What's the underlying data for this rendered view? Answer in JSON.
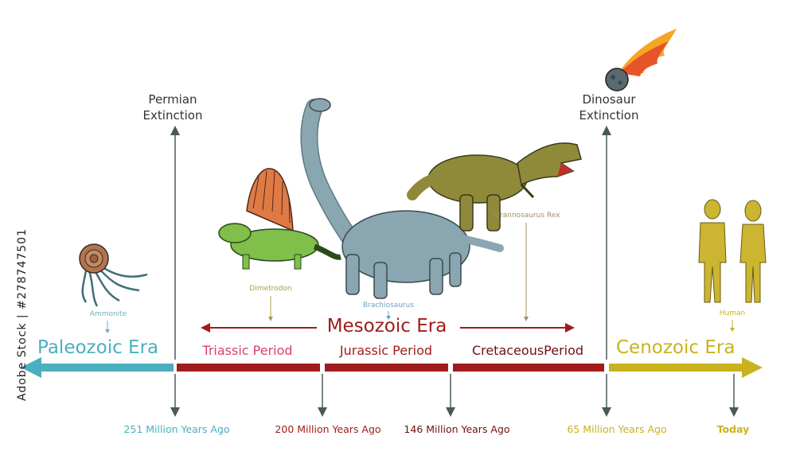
{
  "events": {
    "permian": {
      "line1": "Permian",
      "line2": "Extinction"
    },
    "dinosaur": {
      "line1": "Dinosaur",
      "line2": "Extinction"
    }
  },
  "eras": {
    "paleozoic": {
      "label": "Paleozoic Era",
      "color": "#4aafbf"
    },
    "mesozoic": {
      "label": "Mesozoic Era",
      "color": "#a01c1c"
    },
    "cenozoic": {
      "label": "Cenozoic Era",
      "color": "#c9b21d"
    }
  },
  "periods": {
    "triassic": {
      "label": "Triassic Period",
      "color": "#d9426a"
    },
    "jurassic": {
      "label": "Jurassic Period",
      "color": "#a01c1c"
    },
    "cretaceous": {
      "label": "CretaceousPeriod",
      "color": "#6e1010"
    }
  },
  "dates": {
    "d251": {
      "label": "251 Million Years Ago",
      "color": "#4aafbf"
    },
    "d200": {
      "label": "200 Million Years Ago",
      "color": "#a01c1c"
    },
    "d146": {
      "label": "146 Million Years Ago",
      "color": "#6e1010"
    },
    "d65": {
      "label": "65 Million Years Ago",
      "color": "#c9b21d"
    },
    "today": {
      "label": "Today",
      "color": "#c9b21d"
    }
  },
  "creatures": {
    "ammonite": "Ammonite",
    "dimetrodon": "Dimetrodon",
    "brachiosaurus": "Brachiosaurus",
    "trex": "Tyrannosaurus Rex",
    "human": "Human"
  },
  "watermark": {
    "side_text": "Adobe Stock | #278747501"
  }
}
